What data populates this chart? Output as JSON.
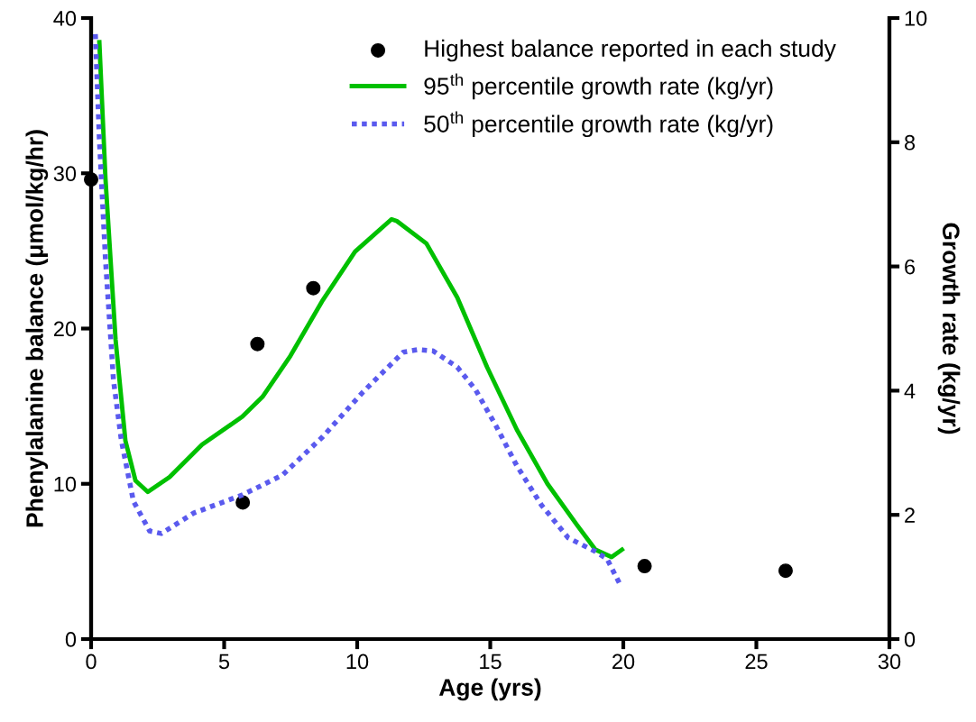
{
  "chart_data": {
    "type": "scatter",
    "xlabel": "Age (yrs)",
    "ylabel": "Phenylalanine balance (μmol/kg/hr)",
    "y2label": "Growth rate (kg/yr)",
    "xlim": [
      0,
      30
    ],
    "xticks": [
      0,
      5,
      10,
      15,
      20,
      25,
      30
    ],
    "ylim": [
      0,
      40
    ],
    "yticks": [
      0,
      10,
      20,
      30,
      40
    ],
    "y2lim": [
      0,
      10
    ],
    "y2ticks": [
      0,
      2,
      4,
      6,
      8,
      10
    ],
    "grid": false,
    "legend": "top right",
    "series": [
      {
        "name": "Highest balance reported in each study",
        "marker": "circle",
        "color": "#000000",
        "x": [
          0,
          5.7,
          6.25,
          8.35,
          20.8,
          26.1
        ],
        "values": [
          29.6,
          8.8,
          19.0,
          22.6,
          4.7,
          4.4
        ]
      },
      {
        "name": "95$^{th}$ percentile growth rate (kg/yr)",
        "type": "line",
        "axis": "y2",
        "line_style": "solid",
        "marker": "none",
        "color": "#00c000",
        "x": [
          0.31,
          0.54,
          0.92,
          1.29,
          1.67,
          2.13,
          2.95,
          4.17,
          5.68,
          6.44,
          7.49,
          8.71,
          9.92,
          11.29,
          11.49,
          12.6,
          13.76,
          14.88,
          16.0,
          17.15,
          18.27,
          18.95,
          19.56,
          19.95
        ],
        "values": [
          9.61,
          7.41,
          4.82,
          3.19,
          2.55,
          2.37,
          2.61,
          3.13,
          3.58,
          3.9,
          4.56,
          5.46,
          6.24,
          6.76,
          6.73,
          6.37,
          5.5,
          4.38,
          3.37,
          2.5,
          1.83,
          1.44,
          1.32,
          1.44
        ]
      },
      {
        "name": "50$^{th}$ percentile growth rate (kg/yr)",
        "type": "line",
        "axis": "y2",
        "line_style": "dotted",
        "marker": "none",
        "color": "#5a5aee",
        "x": [
          0.16,
          0.31,
          0.54,
          0.84,
          1.14,
          1.59,
          2.2,
          2.64,
          3.86,
          5.68,
          7.19,
          8.71,
          10.22,
          11.73,
          12.27,
          12.85,
          13.76,
          14.44,
          15.22,
          16.0,
          16.92,
          17.93,
          18.95,
          19.39,
          19.9
        ],
        "values": [
          9.74,
          8.05,
          6.11,
          4.17,
          3.19,
          2.22,
          1.74,
          1.7,
          2.03,
          2.32,
          2.64,
          3.26,
          3.98,
          4.62,
          4.66,
          4.64,
          4.38,
          4.02,
          3.43,
          2.79,
          2.16,
          1.63,
          1.41,
          1.29,
          0.86
        ]
      }
    ]
  }
}
